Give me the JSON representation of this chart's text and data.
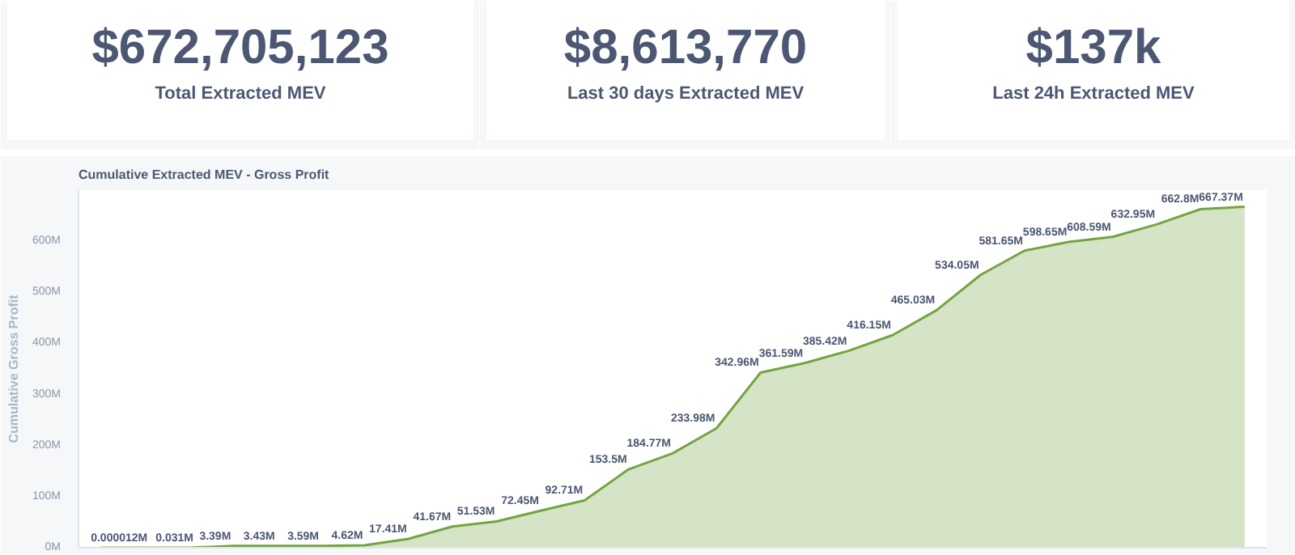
{
  "chart_data": [
    {
      "type": "other",
      "annotations": [
        "$672,705,123",
        "Total Extracted MEV"
      ]
    },
    {
      "type": "other",
      "annotations": [
        "$8,613,770",
        "Last 30 days Extracted MEV"
      ]
    },
    {
      "type": "other",
      "annotations": [
        "$137k",
        "Last 24h Extracted MEV"
      ]
    },
    {
      "type": "area",
      "title": "Cumulative Extracted MEV - Gross Profit",
      "ylabel": "Cumulative Gross Profit",
      "color": "#74a442",
      "categories": [
        null,
        null,
        null,
        null,
        null,
        null,
        null,
        null,
        null,
        null,
        null,
        null,
        null,
        null,
        null,
        null,
        null,
        null,
        null,
        null,
        null,
        null,
        null,
        null,
        null,
        null,
        null
      ],
      "values": [
        1.2e-05,
        0,
        0.031,
        3.39,
        3.43,
        3.59,
        4.62,
        17.41,
        41.67,
        51.53,
        72.45,
        92.71,
        153.5,
        184.77,
        233.98,
        342.96,
        361.59,
        385.42,
        416.15,
        465.03,
        534.05,
        581.65,
        598.65,
        608.59,
        632.95,
        662.8,
        667.37
      ],
      "value_labels": [
        "0.000012M",
        null,
        "0.031M",
        "3.39M",
        "3.43M",
        "3.59M",
        "4.62M",
        "17.41M",
        "41.67M",
        "51.53M",
        "72.45M",
        "92.71M",
        "153.5M",
        "184.77M",
        "233.98M",
        "342.96M",
        "361.59M",
        "385.42M",
        "416.15M",
        "465.03M",
        "534.05M",
        "581.65M",
        "598.65M",
        "608.59M",
        "632.95M",
        "662.8M",
        "667.37M"
      ],
      "ylim": [
        0,
        700
      ],
      "yticks": [
        {
          "value": 0,
          "label": "0M"
        },
        {
          "value": 100,
          "label": "100M"
        },
        {
          "value": 200,
          "label": "200M"
        },
        {
          "value": 300,
          "label": "300M"
        },
        {
          "value": 400,
          "label": "400M"
        },
        {
          "value": 500,
          "label": "500M"
        },
        {
          "value": 600,
          "label": "600M"
        }
      ],
      "tick_labels": "y"
    }
  ]
}
